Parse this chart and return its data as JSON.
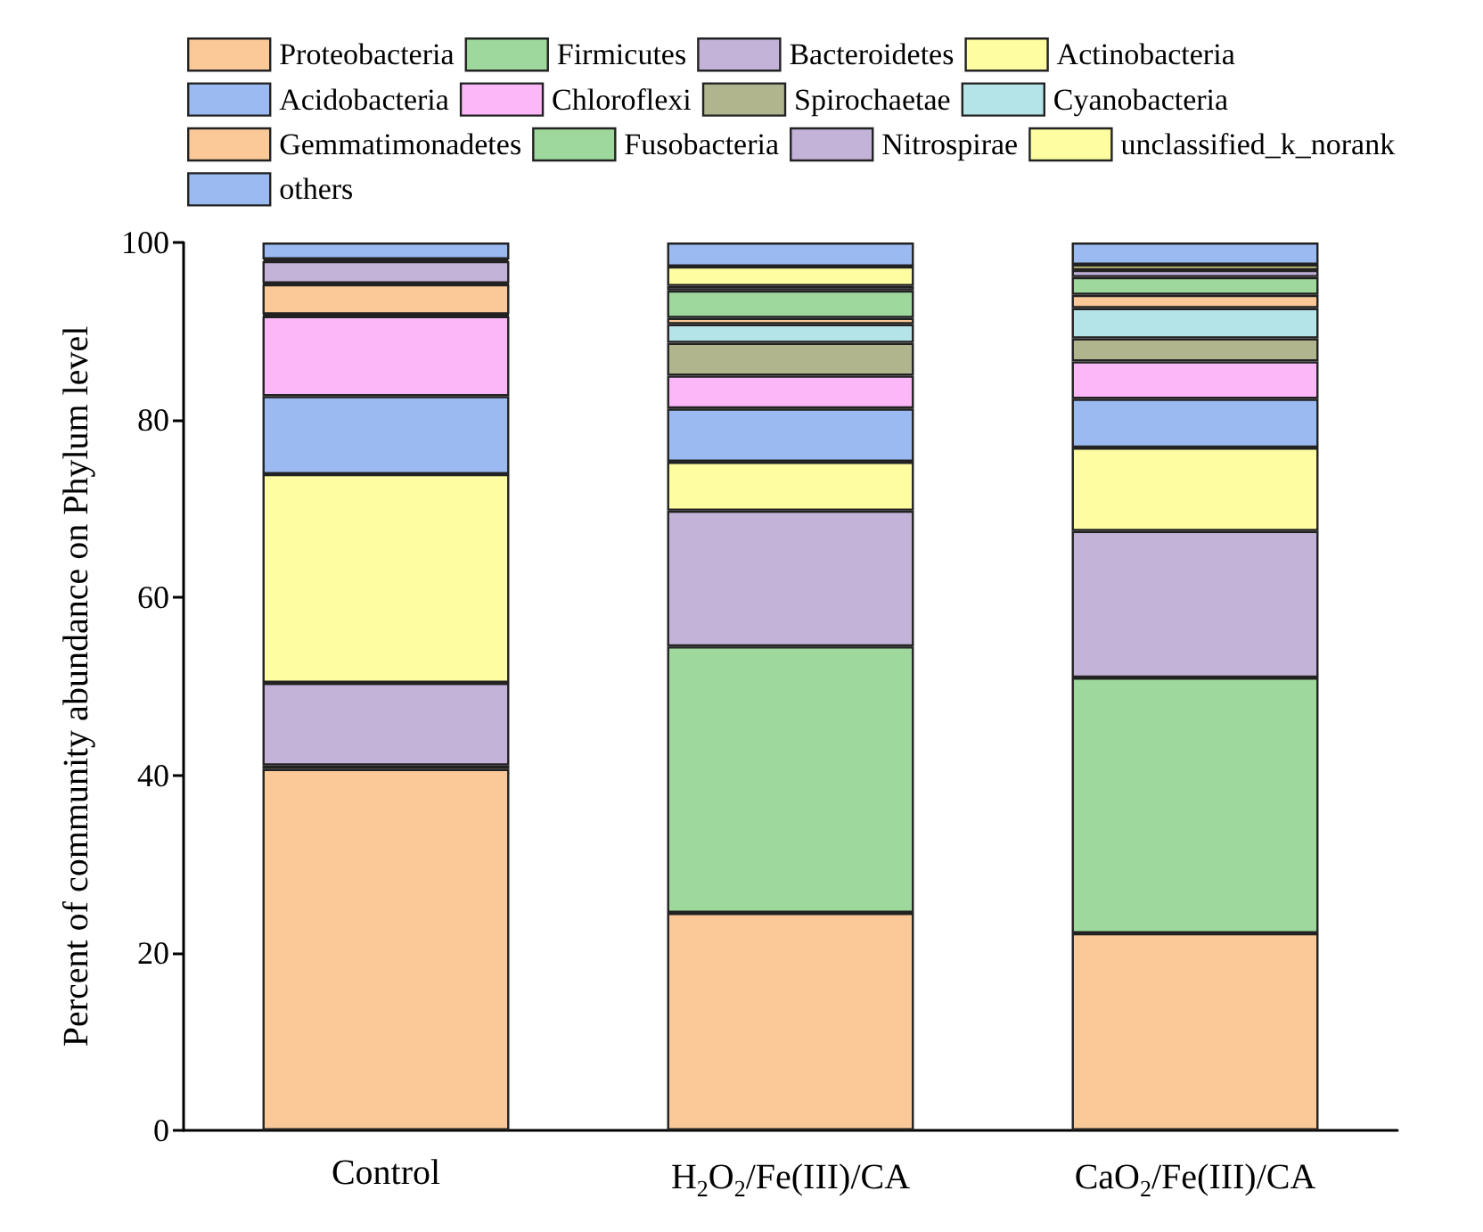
{
  "chart_data": {
    "type": "bar",
    "stacked": true,
    "ylabel": "Percent of community abundance on Phylum level",
    "categories": [
      "Control",
      "H$_{2}$O$_{2}$/Fe(III)/CA",
      "CaO$_{2}$/Fe(III)/CA"
    ],
    "ylim": [
      0,
      100
    ],
    "yticks": [
      0,
      20,
      40,
      60,
      80,
      100
    ],
    "grid": false,
    "legend": "top",
    "series": [
      {
        "name": "Proteobacteria",
        "color": "#fbc997",
        "values": [
          40.7,
          24.5,
          22.2
        ]
      },
      {
        "name": "Firmicutes",
        "color": "#9fd89d",
        "values": [
          0.4,
          30.0,
          28.8
        ]
      },
      {
        "name": "Bacteroidetes",
        "color": "#c3b3d8",
        "values": [
          9.3,
          15.3,
          16.5
        ]
      },
      {
        "name": "Actinobacteria",
        "color": "#fefda1",
        "values": [
          23.5,
          5.5,
          9.4
        ]
      },
      {
        "name": "Acidobacteria",
        "color": "#9bbaf2",
        "values": [
          8.8,
          6.0,
          5.5
        ]
      },
      {
        "name": "Chloroflexi",
        "color": "#fbb7f7",
        "values": [
          9.0,
          3.7,
          4.2
        ]
      },
      {
        "name": "Spirochaetae",
        "color": "#b0b58e",
        "values": [
          0.1,
          3.7,
          2.6
        ]
      },
      {
        "name": "Cyanobacteria",
        "color": "#b4e3e8",
        "values": [
          0.1,
          2.1,
          3.4
        ]
      },
      {
        "name": "Gemmatimonadetes",
        "color": "#fbc997",
        "values": [
          3.4,
          0.7,
          1.5
        ]
      },
      {
        "name": "Fusobacteria",
        "color": "#9fd89d",
        "values": [
          0.1,
          3.1,
          2.0
        ]
      },
      {
        "name": "Nitrospirae",
        "color": "#c3b3d8",
        "values": [
          2.5,
          0.5,
          0.8
        ]
      },
      {
        "name": "unclassified_k_norank",
        "color": "#fefda1",
        "values": [
          0.2,
          2.2,
          0.6
        ]
      },
      {
        "name": "others",
        "color": "#9bbaf2",
        "values": [
          1.9,
          2.7,
          2.5
        ]
      }
    ]
  }
}
